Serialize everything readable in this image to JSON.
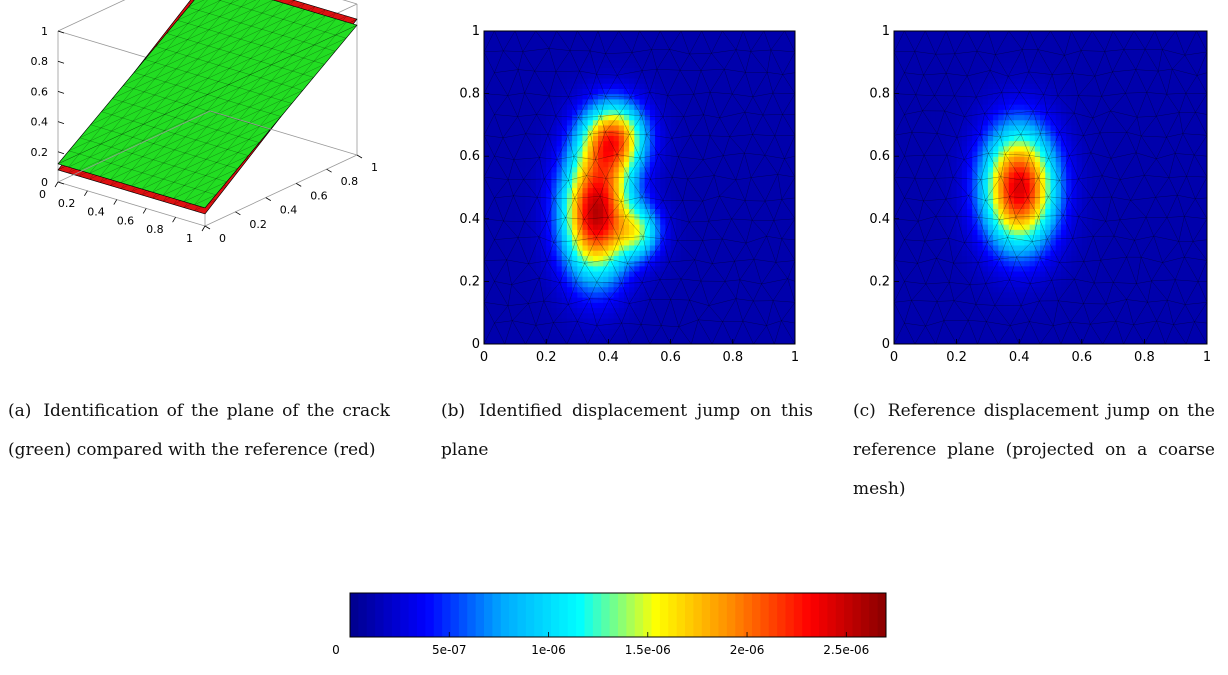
{
  "panels": [
    {
      "id": "a",
      "label": "(a)",
      "caption": "Identification of the plane of the crack (green) compared with the reference (red)"
    },
    {
      "id": "b",
      "label": "(b)",
      "caption": "Identified displacement jump on this plane"
    },
    {
      "id": "c",
      "label": "(c)",
      "caption": "Reference displacement jump on the reference plane (projected on a coarse mesh)"
    }
  ],
  "colors": {
    "green_plane": "#22dd22",
    "red_plane": "#dd1111",
    "mesh_line": "#000000",
    "colormap": [
      "#00008c",
      "#0000ff",
      "#00aaff",
      "#00ffff",
      "#ffff00",
      "#ff8800",
      "#ff0000",
      "#880000"
    ]
  },
  "chart_data": [
    {
      "type": "surface",
      "panel": "a",
      "axes_ticks": {
        "z": [
          "0",
          "0.2",
          "0.4",
          "0.6",
          "0.8",
          "1"
        ],
        "x": [
          "0",
          "0.2",
          "0.4",
          "0.6",
          "0.8",
          "1"
        ],
        "y": [
          "0",
          "0.2",
          "0.4",
          "0.6",
          "0.8",
          "1"
        ]
      },
      "series": [
        {
          "name": "crack",
          "color": "green",
          "corner_heights": {
            "x0y0": 0.12,
            "x0y1": 0.86,
            "x1y1": 0.86,
            "x1y0": 0.12
          }
        },
        {
          "name": "reference",
          "color": "red",
          "corner_heights": {
            "x0y0": 0.08,
            "x0y1": 0.9,
            "x1y1": 0.9,
            "x1y0": 0.08
          }
        }
      ]
    },
    {
      "type": "heatmap",
      "panel": "b",
      "xlim": [
        0,
        1
      ],
      "ylim": [
        0,
        1
      ],
      "xticks": [
        "0",
        "0.2",
        "0.4",
        "0.6",
        "0.8",
        "1"
      ],
      "yticks": [
        "0",
        "0.2",
        "0.4",
        "0.6",
        "0.8",
        "1"
      ],
      "blobs": [
        {
          "x": 0.36,
          "y": 0.42,
          "sx": 0.075,
          "sy": 0.14,
          "amplitude": 2.5e-06
        },
        {
          "x": 0.42,
          "y": 0.66,
          "sx": 0.07,
          "sy": 0.08,
          "amplitude": 1.8e-06
        },
        {
          "x": 0.5,
          "y": 0.36,
          "sx": 0.05,
          "sy": 0.06,
          "amplitude": 1e-06
        }
      ]
    },
    {
      "type": "heatmap",
      "panel": "c",
      "xlim": [
        0,
        1
      ],
      "ylim": [
        0,
        1
      ],
      "xticks": [
        "0",
        "0.2",
        "0.4",
        "0.6",
        "0.8",
        "1"
      ],
      "yticks": [
        "0",
        "0.2",
        "0.4",
        "0.6",
        "0.8",
        "1"
      ],
      "blobs": [
        {
          "x": 0.4,
          "y": 0.5,
          "sx": 0.08,
          "sy": 0.13,
          "amplitude": 2.4e-06
        }
      ]
    },
    {
      "type": "colorbar",
      "range": [
        0,
        2.7e-06
      ],
      "tick_values": [
        0,
        5e-07,
        1e-06,
        1.5e-06,
        2e-06,
        2.5e-06
      ],
      "tick_labels": [
        "0",
        "5e-07",
        "1e-06",
        "1.5e-06",
        "2e-06",
        "2.5e-06"
      ]
    }
  ]
}
